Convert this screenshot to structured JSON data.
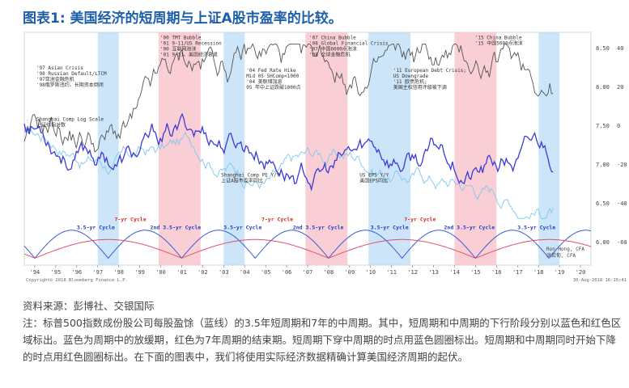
{
  "title": "图表1: 美国经济的短周期与上证A股市盈率的比较。",
  "source": "资料来源：彭博社、交银国际",
  "note": "注：标普500指数成份股公司每股盈馀（蓝线）的3.5年短周期和7年的中周期。其中，短周期和中周期的下行阶段分别以蓝色和红色区域标出。蓝色为周期中的放缓期，红色为7年周期的结束期。短周期下穿中周期的时点用蓝色圆圈标出。短周期和中周期同时开始下降的时点用红色圆圈标出。在下面的图表中，我们将使用实际经济数据精确计算美国经济周期的起伏。",
  "chart_data": {
    "type": "line",
    "x_ticks": [
      "'94",
      "'95",
      "'96",
      "'97",
      "'98",
      "'99",
      "'00",
      "'01",
      "'02",
      "'03",
      "'04",
      "'05",
      "'06",
      "'07",
      "'08",
      "'09",
      "'10",
      "'11",
      "'12",
      "'13",
      "'14",
      "'15",
      "'16",
      "'17",
      "'18",
      "'19",
      "'20"
    ],
    "left_axis_ticks": [
      "8.50",
      "8.00",
      "7.50",
      "7.00",
      "6.50",
      "6.00"
    ],
    "right_axis_ticks": [
      "40",
      "20",
      "0",
      "-20",
      "-40",
      "-60"
    ],
    "blue_shaded_periods": [
      [
        1997.0,
        1998.0
      ],
      [
        2003.0,
        2004.0
      ],
      [
        2009.9,
        2011.9
      ],
      [
        2018.0,
        2019.0
      ]
    ],
    "red_shaded_periods": [
      [
        1999.9,
        2001.9
      ],
      [
        2006.9,
        2008.9
      ],
      [
        2014.0,
        2016.0
      ]
    ],
    "annotations": [
      {
        "year": 1994.0,
        "level": 0.84,
        "lines": [
          "'97 Asian Crisis",
          "'98 Russian Default/LTCM",
          "'97亚洲金融危机",
          "'98俄罗斯违约、长期资本倒闭"
        ]
      },
      {
        "year": 1999.9,
        "level": 0.97,
        "lines": [
          "'00 TMT Bubble",
          "'01 9-11/US Recession",
          "'00 互联网泡沫",
          "'01 9-11、美国经济衰退"
        ]
      },
      {
        "year": 2004.0,
        "level": 0.83,
        "lines": [
          "'04 Fed Rate Hike",
          "Mid 05 SHComp<1000",
          "'04 美联储加息",
          "05 年中上证跌破1000点"
        ]
      },
      {
        "year": 2007.0,
        "level": 0.97,
        "lines": [
          "'07 China Bubble",
          "'08 Global Financial Crisis",
          "'07 中国6000点泡沫",
          "'08 全球金融危机"
        ]
      },
      {
        "year": 2011.0,
        "level": 0.83,
        "lines": [
          "'11 European Debt Crisis;",
          "US Downgrade",
          "'11 欧债危机;",
          "美国主权信用评级被下调"
        ]
      },
      {
        "year": 2014.9,
        "level": 0.97,
        "lines": [
          "'15 China Bubble",
          "'15 中国5000点泡沫"
        ]
      },
      {
        "year": 1994.0,
        "level": 0.62,
        "lines": [
          "Shanghai Comp Log Scale",
          "上证综指对数"
        ]
      },
      {
        "year": 2002.8,
        "level": 0.38,
        "lines": [
          "Shanghai Comp PE Y/Y",
          "上证A股市盈率同比"
        ]
      },
      {
        "year": 2009.4,
        "level": 0.38,
        "lines": [
          "US EPS Y/Y",
          "美国EPS同比"
        ]
      }
    ],
    "cycle_labels": [
      {
        "year": 1996.0,
        "text": "3.5-yr Cycle",
        "color": "#1f3fbf"
      },
      {
        "year": 1997.8,
        "text": "7-yr Cycle",
        "color": "#d6281f"
      },
      {
        "year": 1999.5,
        "text": "2nd 3.5-yr Cycle",
        "color": "#1f3fbf"
      },
      {
        "year": 2003.0,
        "text": "3.5-yr Cycle",
        "color": "#1f3fbf"
      },
      {
        "year": 2004.8,
        "text": "7-yr Cycle",
        "color": "#d6281f"
      },
      {
        "year": 2006.3,
        "text": "2nd 3.5-yr Cycle",
        "color": "#1f3fbf"
      },
      {
        "year": 2010.0,
        "text": "3.5-yr Cycle",
        "color": "#1f3fbf"
      },
      {
        "year": 2011.6,
        "text": "7-yr Cycle",
        "color": "#d6281f"
      },
      {
        "year": 2013.5,
        "text": "2nd 3.5-yr Cycle",
        "color": "#1f3fbf"
      },
      {
        "year": 2017.0,
        "text": "3.5-yr Cycle",
        "color": "#1f3fbf"
      }
    ],
    "copyright": "Copyright© 2018 Bloomberg Finance L.P.",
    "date_stamp": "30-Aug-2018 16:15:41",
    "author": "Ron Hong, CFA",
    "author_zh": "洪若甸, CFA",
    "series": [
      {
        "name": "Shanghai Comp Log Scale",
        "color": "#7ec8f0"
      },
      {
        "name": "Shanghai Comp PE Y/Y",
        "color": "#555555"
      },
      {
        "name": "US EPS Y/Y",
        "color": "#3b3bd6"
      }
    ]
  }
}
